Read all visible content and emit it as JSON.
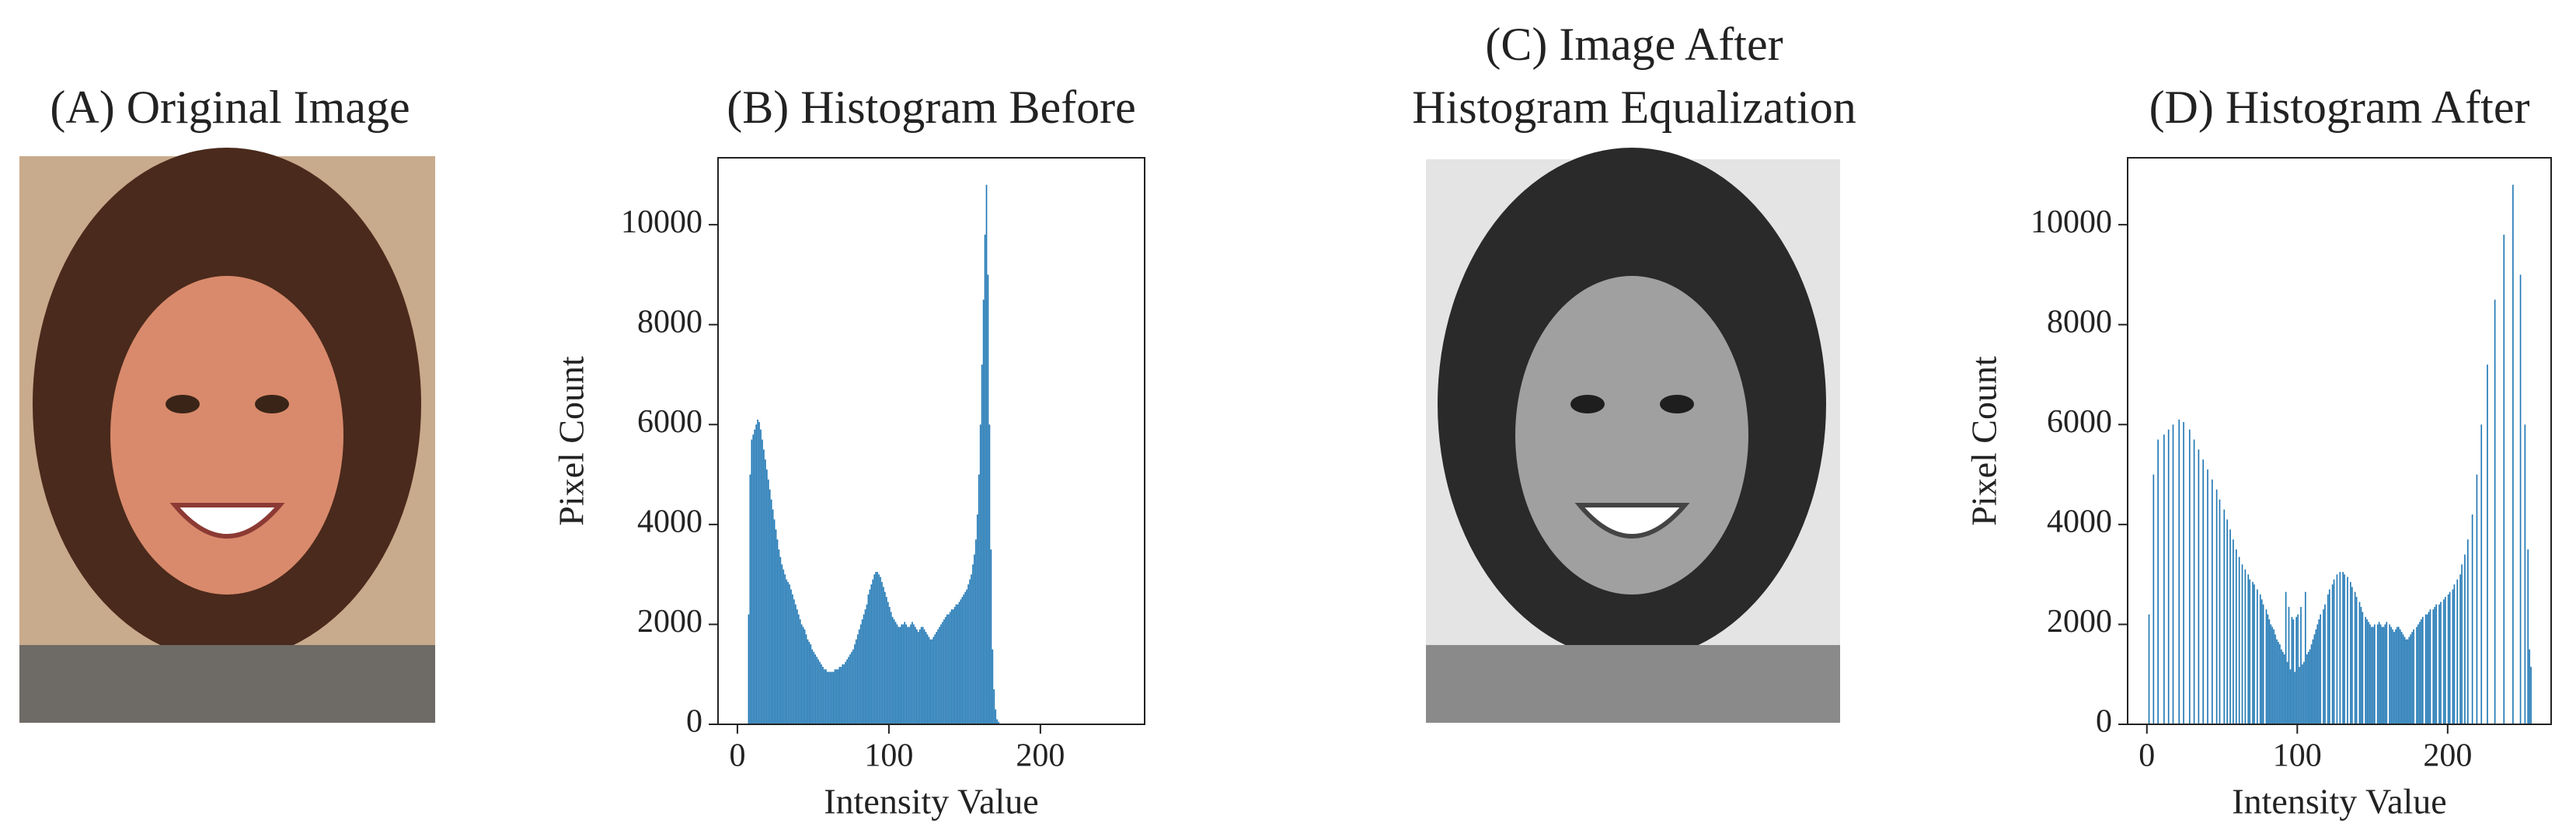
{
  "images": [
    {
      "title": "(A) Original Image"
    },
    {
      "title": [
        "(C) Image After",
        "Histogram Equalization"
      ]
    }
  ],
  "chart_data": [
    {
      "type": "histogram",
      "title": "(B) Histogram Before",
      "xlabel": "Intensity Value",
      "ylabel": "Pixel Count",
      "color": "#1f77b4",
      "xlim": [
        -12.8,
        268.8
      ],
      "ylim": [
        0,
        11340
      ],
      "xticks": [
        0,
        100,
        200
      ],
      "yticks": [
        0,
        2000,
        4000,
        6000,
        8000,
        10000
      ],
      "bins": [
        0,
        1,
        2,
        3,
        4,
        5,
        6,
        7,
        8,
        9,
        10,
        11,
        12,
        13,
        14,
        15,
        16,
        17,
        18,
        19,
        20,
        21,
        22,
        23,
        24,
        25,
        26,
        27,
        28,
        29,
        30,
        31,
        32,
        33,
        34,
        35,
        36,
        37,
        38,
        39,
        40,
        41,
        42,
        43,
        44,
        45,
        46,
        47,
        48,
        49,
        50,
        51,
        52,
        53,
        54,
        55,
        56,
        57,
        58,
        59,
        60,
        61,
        62,
        63,
        64,
        65,
        66,
        67,
        68,
        69,
        70,
        71,
        72,
        73,
        74,
        75,
        76,
        77,
        78,
        79,
        80,
        81,
        82,
        83,
        84,
        85,
        86,
        87,
        88,
        89,
        90,
        91,
        92,
        93,
        94,
        95,
        96,
        97,
        98,
        99,
        100,
        101,
        102,
        103,
        104,
        105,
        106,
        107,
        108,
        109,
        110,
        111,
        112,
        113,
        114,
        115,
        116,
        117,
        118,
        119,
        120,
        121,
        122,
        123,
        124,
        125,
        126,
        127,
        128,
        129,
        130,
        131,
        132,
        133,
        134,
        135,
        136,
        137,
        138,
        139,
        140,
        141,
        142,
        143,
        144,
        145,
        146,
        147,
        148,
        149,
        150,
        151,
        152,
        153,
        154,
        155,
        156,
        157,
        158,
        159,
        160,
        161,
        162,
        163,
        164,
        165,
        166,
        167,
        168,
        169,
        170,
        171,
        172,
        173,
        174,
        175,
        176,
        177,
        178,
        179,
        180,
        181,
        182,
        183,
        184,
        185,
        186,
        187,
        188,
        189,
        190,
        191,
        192,
        193,
        194,
        195,
        196,
        197,
        198,
        199,
        200,
        201,
        202,
        203,
        204,
        205,
        206,
        207,
        208,
        209,
        210,
        211,
        212,
        213,
        214,
        215,
        216,
        217,
        218,
        219,
        220,
        221,
        222,
        223,
        224,
        225,
        226,
        227,
        228,
        229,
        230,
        231,
        232,
        233,
        234,
        235,
        236,
        237,
        238,
        239,
        240,
        241,
        242,
        243,
        244,
        245,
        246,
        247,
        248,
        249,
        250,
        251,
        252,
        253,
        254,
        255,
        256
      ],
      "values": [
        0,
        0,
        0,
        0,
        0,
        0,
        0,
        2200,
        5000,
        5700,
        5800,
        5900,
        6000,
        6100,
        6050,
        5900,
        5700,
        5500,
        5300,
        5100,
        4900,
        4700,
        4500,
        4300,
        4100,
        3900,
        3700,
        3500,
        3350,
        3200,
        3100,
        3000,
        2900,
        2850,
        2800,
        2700,
        2600,
        2500,
        2400,
        2300,
        2200,
        2100,
        2000,
        1950,
        1900,
        1800,
        1700,
        1650,
        1600,
        1500,
        1450,
        1400,
        1350,
        1300,
        1250,
        1200,
        1150,
        1100,
        1100,
        1050,
        1050,
        1050,
        1050,
        1050,
        1100,
        1100,
        1100,
        1150,
        1150,
        1200,
        1200,
        1250,
        1300,
        1350,
        1400,
        1450,
        1500,
        1600,
        1700,
        1800,
        1900,
        2000,
        2100,
        2200,
        2300,
        2400,
        2600,
        2700,
        2800,
        2900,
        3000,
        3050,
        3050,
        3000,
        2950,
        2850,
        2750,
        2650,
        2550,
        2450,
        2350,
        2250,
        2150,
        2100,
        2050,
        2000,
        1950,
        1950,
        2000,
        2000,
        2050,
        2000,
        1950,
        1950,
        2000,
        2050,
        2000,
        1950,
        1900,
        1850,
        1900,
        1950,
        1950,
        1900,
        1850,
        1800,
        1750,
        1700,
        1700,
        1750,
        1800,
        1850,
        1900,
        1950,
        2000,
        2050,
        2100,
        2150,
        2200,
        2200,
        2250,
        2300,
        2300,
        2350,
        2400,
        2400,
        2450,
        2500,
        2550,
        2600,
        2650,
        2700,
        2800,
        2900,
        3000,
        3200,
        3400,
        3700,
        4200,
        5000,
        6000,
        7200,
        8500,
        9800,
        10800,
        9000,
        6000,
        3500,
        1500,
        700,
        300,
        100,
        50,
        0,
        0,
        0,
        0,
        0,
        0,
        0,
        0,
        0,
        0,
        0,
        0,
        0,
        0,
        0,
        0,
        0,
        0,
        0,
        0,
        0,
        0,
        0,
        0,
        0,
        0,
        0,
        0,
        0,
        0,
        0,
        0,
        0,
        0,
        0,
        0,
        0,
        0,
        0,
        0,
        0,
        0,
        0,
        0,
        0,
        0,
        0,
        0,
        0,
        0,
        0,
        0,
        0,
        0,
        0,
        0,
        0,
        0,
        0,
        0,
        0,
        0,
        0,
        0,
        0,
        0,
        0,
        0,
        0,
        0,
        0,
        0,
        0,
        0,
        0,
        0,
        0,
        0,
        0,
        0,
        0,
        0,
        0
      ]
    },
    {
      "type": "histogram",
      "title": "(D) Histogram After",
      "xlabel": "Intensity Value",
      "ylabel": "Pixel Count",
      "color": "#1f77b4",
      "xlim": [
        -12.8,
        268.8
      ],
      "ylim": [
        0,
        11340
      ],
      "xticks": [
        0,
        100,
        200
      ],
      "yticks": [
        0,
        2000,
        4000,
        6000,
        8000,
        10000
      ],
      "bins": [
        0,
        1,
        2,
        3,
        4,
        5,
        6,
        7,
        8,
        9,
        10,
        11,
        12,
        13,
        14,
        15,
        16,
        17,
        18,
        19,
        20,
        21,
        22,
        23,
        24,
        25,
        26,
        27,
        28,
        29,
        30,
        31,
        32,
        33,
        34,
        35,
        36,
        37,
        38,
        39,
        40,
        41,
        42,
        43,
        44,
        45,
        46,
        47,
        48,
        49,
        50,
        51,
        52,
        53,
        54,
        55,
        56,
        57,
        58,
        59,
        60,
        61,
        62,
        63,
        64,
        65,
        66,
        67,
        68,
        69,
        70,
        71,
        72,
        73,
        74,
        75,
        76,
        77,
        78,
        79,
        80,
        81,
        82,
        83,
        84,
        85,
        86,
        87,
        88,
        89,
        90,
        91,
        92,
        93,
        94,
        95,
        96,
        97,
        98,
        99,
        100,
        101,
        102,
        103,
        104,
        105,
        106,
        107,
        108,
        109,
        110,
        111,
        112,
        113,
        114,
        115,
        116,
        117,
        118,
        119,
        120,
        121,
        122,
        123,
        124,
        125,
        126,
        127,
        128,
        129,
        130,
        131,
        132,
        133,
        134,
        135,
        136,
        137,
        138,
        139,
        140,
        141,
        142,
        143,
        144,
        145,
        146,
        147,
        148,
        149,
        150,
        151,
        152,
        153,
        154,
        155,
        156,
        157,
        158,
        159,
        160,
        161,
        162,
        163,
        164,
        165,
        166,
        167,
        168,
        169,
        170,
        171,
        172,
        173,
        174,
        175,
        176,
        177,
        178,
        179,
        180,
        181,
        182,
        183,
        184,
        185,
        186,
        187,
        188,
        189,
        190,
        191,
        192,
        193,
        194,
        195,
        196,
        197,
        198,
        199,
        200,
        201,
        202,
        203,
        204,
        205,
        206,
        207,
        208,
        209,
        210,
        211,
        212,
        213,
        214,
        215,
        216,
        217,
        218,
        219,
        220,
        221,
        222,
        223,
        224,
        225,
        226,
        227,
        228,
        229,
        230,
        231,
        232,
        233,
        234,
        235,
        236,
        237,
        238,
        239,
        240,
        241,
        242,
        243,
        244,
        245,
        246,
        247,
        248,
        249,
        250,
        251,
        252,
        253,
        254,
        255,
        256
      ],
      "values": [
        0,
        2200,
        0,
        0,
        5000,
        0,
        0,
        5700,
        0,
        0,
        0,
        5800,
        0,
        0,
        5900,
        0,
        0,
        6000,
        0,
        0,
        0,
        6100,
        0,
        0,
        6050,
        0,
        0,
        0,
        5900,
        0,
        0,
        5700,
        0,
        0,
        5500,
        0,
        0,
        5300,
        0,
        0,
        5100,
        0,
        0,
        4900,
        0,
        0,
        4700,
        0,
        4500,
        0,
        0,
        4300,
        0,
        4100,
        0,
        3900,
        0,
        3700,
        0,
        3500,
        0,
        3350,
        0,
        3200,
        0,
        3100,
        0,
        3000,
        2900,
        0,
        2850,
        2800,
        0,
        2700,
        0,
        2600,
        2500,
        2400,
        0,
        2300,
        2200,
        2100,
        2000,
        1950,
        1900,
        1800,
        1700,
        1650,
        1600,
        1500,
        1450,
        1400,
        2650,
        1250,
        2350,
        1100,
        2150,
        2100,
        1050,
        2150,
        2200,
        1150,
        2350,
        1200,
        1250,
        2650,
        1400,
        1450,
        1500,
        1600,
        1700,
        1800,
        1900,
        2000,
        2100,
        2200,
        0,
        2300,
        2400,
        0,
        2600,
        2700,
        0,
        2800,
        2900,
        0,
        3000,
        0,
        3050,
        0,
        3050,
        3000,
        0,
        2950,
        0,
        2850,
        2750,
        0,
        2650,
        2550,
        0,
        2450,
        2350,
        2250,
        0,
        2150,
        2100,
        2050,
        2000,
        1950,
        1950,
        2000,
        0,
        2000,
        2050,
        2000,
        1950,
        1950,
        2000,
        2050,
        0,
        2000,
        1950,
        1900,
        1850,
        1900,
        1950,
        1950,
        1900,
        1850,
        1800,
        1750,
        1700,
        1700,
        1750,
        1800,
        1850,
        1900,
        0,
        1950,
        2000,
        2050,
        2100,
        2150,
        0,
        2200,
        2200,
        2250,
        2300,
        0,
        2300,
        2350,
        2400,
        0,
        2400,
        2450,
        0,
        2500,
        2550,
        0,
        2600,
        2650,
        0,
        2700,
        2800,
        0,
        2900,
        0,
        3000,
        3200,
        0,
        3400,
        0,
        3700,
        0,
        0,
        4200,
        0,
        0,
        5000,
        0,
        0,
        6000,
        0,
        0,
        0,
        7200,
        0,
        0,
        0,
        0,
        8500,
        0,
        0,
        0,
        0,
        0,
        9800,
        0,
        0,
        0,
        0,
        0,
        10800,
        0,
        0,
        0,
        0,
        9000,
        0,
        0,
        6000,
        0,
        3500,
        1500,
        1150
      ]
    }
  ]
}
